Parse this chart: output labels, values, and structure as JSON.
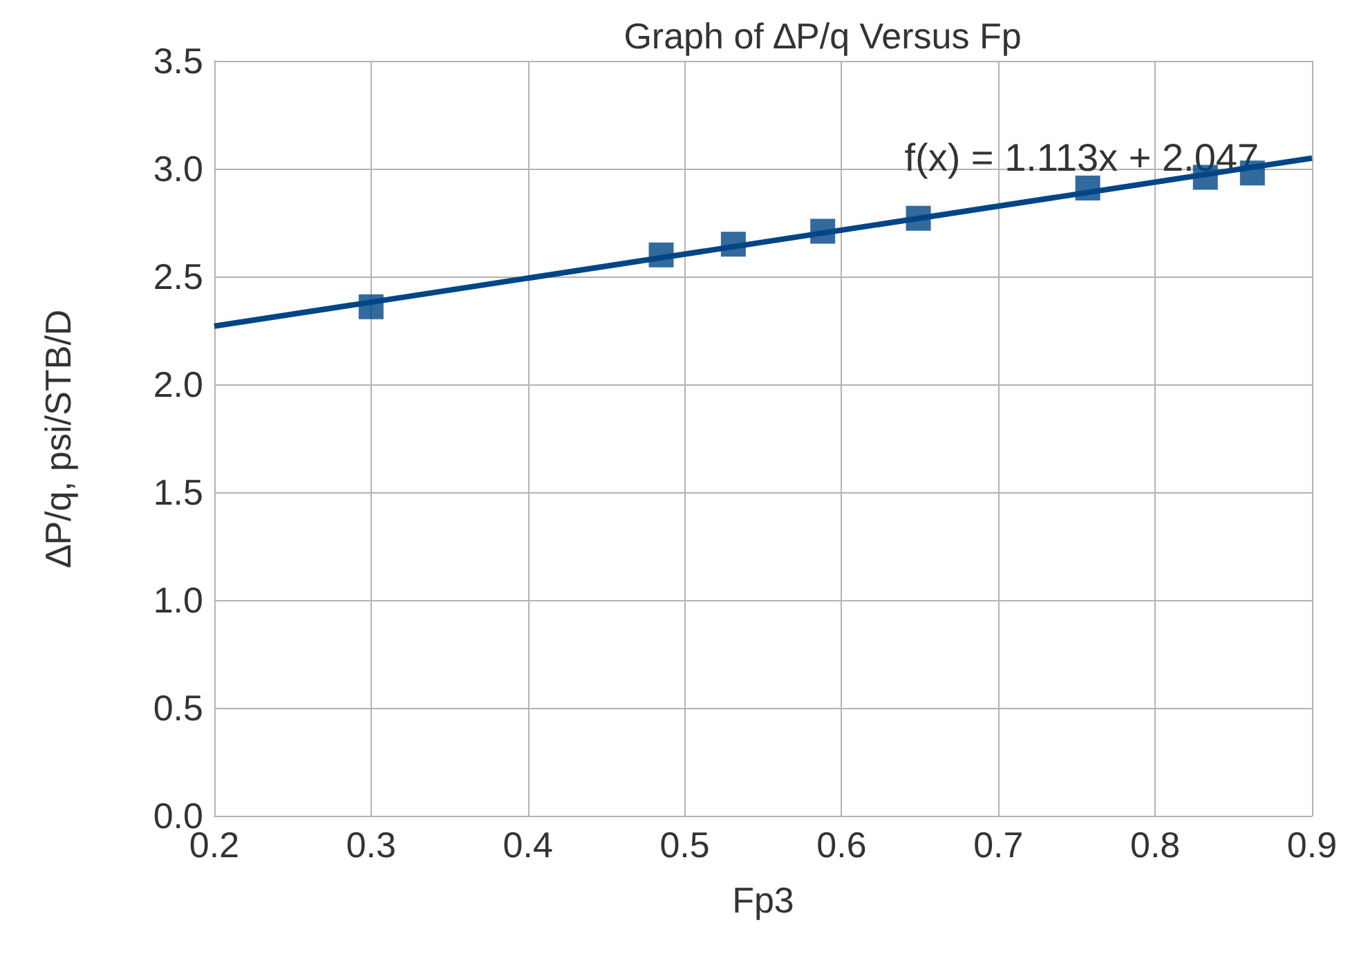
{
  "chart_data": {
    "type": "scatter",
    "title": "Graph of ∆P/q Versus Fp",
    "xlabel": "Fp3",
    "ylabel": "∆P/q, psi/STB/D",
    "series": [
      {
        "color": "#004586",
        "x": [
          0.3,
          0.485,
          0.531,
          0.588,
          0.649,
          0.757,
          0.832,
          0.862
        ],
        "values": [
          2.36,
          2.6,
          2.65,
          2.71,
          2.77,
          2.91,
          2.96,
          2.98
        ],
        "marker": "square"
      },
      {
        "type": "line",
        "color": "#004586",
        "x": [
          0.2,
          0.9
        ],
        "values": [
          2.27,
          3.049
        ],
        "marker": "none"
      }
    ],
    "annotations": [
      {
        "text": "f(x) = 1.113x + 2.047",
        "x": 0.79,
        "y": 2.95
      }
    ],
    "xlim": [
      0.2,
      0.9
    ],
    "xticks": [
      0.2,
      0.3,
      0.4,
      0.5,
      0.6,
      0.7,
      0.8,
      0.9
    ],
    "ylim": [
      0,
      3.5
    ],
    "yticks": [
      {
        "value": 0,
        "label": "0.0"
      },
      {
        "value": 0.5,
        "label": "0.5"
      },
      {
        "value": 1,
        "label": "1.0"
      },
      {
        "value": 1.5,
        "label": "1.5"
      },
      {
        "value": 2,
        "label": "2.0"
      },
      {
        "value": 2.5,
        "label": "2.5"
      },
      {
        "value": 3,
        "label": "3.0"
      },
      {
        "value": 3.5,
        "label": "3.5"
      }
    ],
    "grid": true
  }
}
